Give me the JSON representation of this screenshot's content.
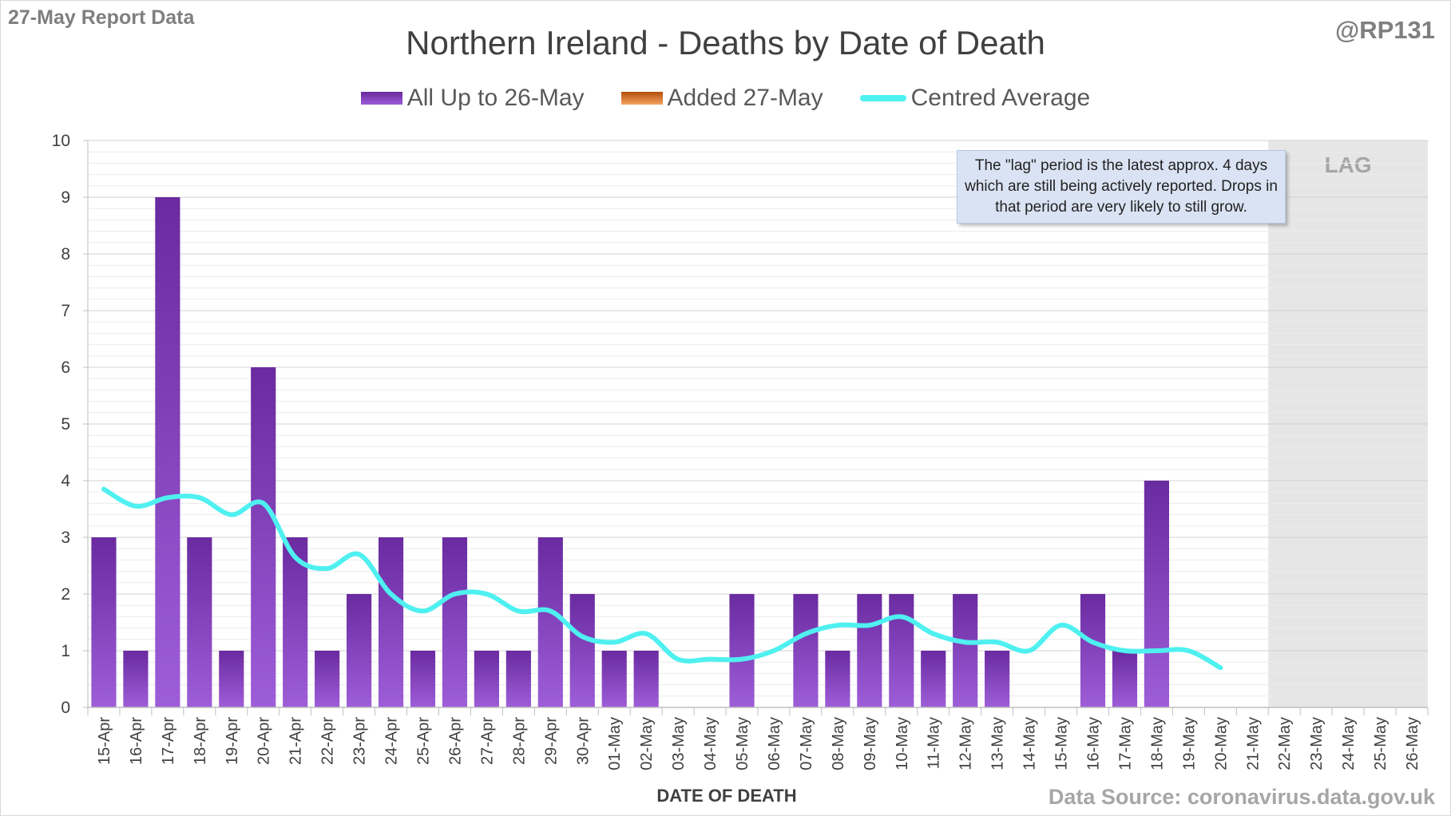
{
  "header": {
    "report_label": "27-May Report Data",
    "handle": "@RP131",
    "source": "Data Source: coronavirus.data.gov.uk"
  },
  "note": {
    "text": "The \"lag\" period is the latest approx. 4 days which are still being actively reported. Drops in that period are very likely to still grow."
  },
  "colors": {
    "bar": "#7030a0",
    "added": "#c55a11",
    "average": "#4ff0f0",
    "lag_shade": "#e6e6e6"
  },
  "chart_data": {
    "type": "bar",
    "title": "Northern Ireland - Deaths by Date of Death",
    "xlabel": "DATE OF DEATH",
    "ylabel": "",
    "ylim": [
      0,
      10
    ],
    "yticks": [
      0,
      1,
      2,
      3,
      4,
      5,
      6,
      7,
      8,
      9,
      10
    ],
    "lag_label": "LAG",
    "lag_start_index": 37,
    "categories": [
      "15-Apr",
      "16-Apr",
      "17-Apr",
      "18-Apr",
      "19-Apr",
      "20-Apr",
      "21-Apr",
      "22-Apr",
      "23-Apr",
      "24-Apr",
      "25-Apr",
      "26-Apr",
      "27-Apr",
      "28-Apr",
      "29-Apr",
      "30-Apr",
      "01-May",
      "02-May",
      "03-May",
      "04-May",
      "05-May",
      "06-May",
      "07-May",
      "08-May",
      "09-May",
      "10-May",
      "11-May",
      "12-May",
      "13-May",
      "14-May",
      "15-May",
      "16-May",
      "17-May",
      "18-May",
      "19-May",
      "20-May",
      "21-May",
      "22-May",
      "23-May",
      "24-May",
      "25-May",
      "26-May"
    ],
    "series": [
      {
        "name": "All Up to 26-May",
        "type": "bar",
        "values": [
          3,
          1,
          9,
          3,
          1,
          6,
          3,
          1,
          2,
          3,
          1,
          3,
          1,
          1,
          3,
          2,
          1,
          1,
          0,
          0,
          2,
          0,
          2,
          1,
          2,
          2,
          1,
          2,
          1,
          0,
          0,
          2,
          1,
          4,
          0,
          0,
          0,
          0,
          0,
          0,
          0,
          0
        ]
      },
      {
        "name": "Added 27-May",
        "type": "bar",
        "values": [
          0,
          0,
          0,
          0,
          0,
          0,
          0,
          0,
          0,
          0,
          0,
          0,
          0,
          0,
          0,
          0,
          0,
          0,
          0,
          0,
          0,
          0,
          0,
          0,
          0,
          0,
          0,
          0,
          0,
          0,
          0,
          0,
          0,
          0,
          0,
          0,
          0,
          0,
          0,
          0,
          0,
          0
        ]
      },
      {
        "name": "Centred Average",
        "type": "line",
        "values": [
          3.85,
          3.55,
          3.7,
          3.7,
          3.4,
          3.6,
          2.65,
          2.45,
          2.7,
          2.0,
          1.7,
          2.0,
          2.0,
          1.7,
          1.7,
          1.25,
          1.15,
          1.3,
          0.85,
          0.85,
          0.85,
          1.0,
          1.3,
          1.45,
          1.45,
          1.6,
          1.3,
          1.15,
          1.15,
          1.0,
          1.45,
          1.15,
          1.0,
          1.0,
          1.0,
          0.7,
          null,
          null,
          null,
          null,
          null,
          null
        ]
      }
    ]
  }
}
